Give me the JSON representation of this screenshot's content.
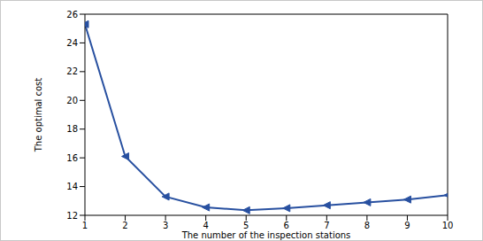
{
  "chart_data": {
    "type": "line",
    "x_label": "The number of the inspection stations",
    "y_label": "The optimal cost",
    "x": [
      1,
      2,
      3,
      4,
      5,
      6,
      7,
      8,
      9,
      10
    ],
    "values": [
      25.3,
      16.1,
      13.3,
      12.55,
      12.35,
      12.5,
      12.7,
      12.9,
      13.1,
      13.4
    ],
    "color": "#2850a0",
    "marker": "triangle-left",
    "xlim": [
      1,
      10
    ],
    "xticks": [
      1,
      2,
      3,
      4,
      5,
      6,
      7,
      8,
      9,
      10
    ],
    "ylim": [
      12,
      26
    ],
    "yticks": [
      12,
      14,
      16,
      18,
      20,
      22,
      24,
      26
    ],
    "grid": false
  }
}
